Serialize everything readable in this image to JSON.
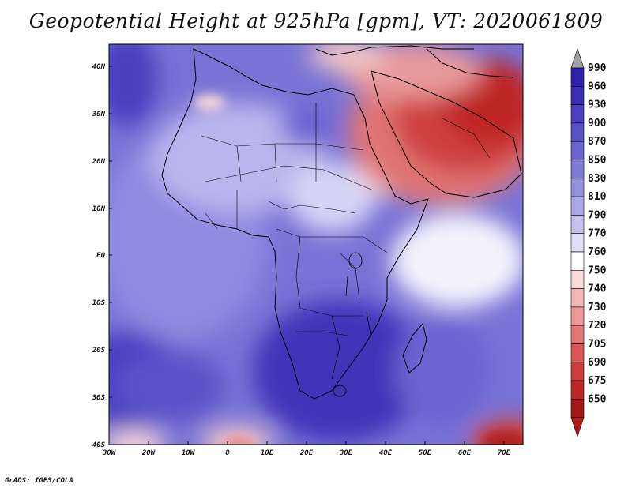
{
  "title": "Geopotential Height at 925hPa [gpm], VT: 2020061809",
  "credit": "GrADS: IGES/COLA",
  "map": {
    "lat_labels": [
      "40N",
      "30N",
      "20N",
      "10N",
      "EQ",
      "10S",
      "20S",
      "30S",
      "40S"
    ],
    "lat_values": [
      40,
      30,
      20,
      10,
      0,
      -10,
      -20,
      -30,
      -40
    ],
    "lon_labels": [
      "30W",
      "20W",
      "10W",
      "0",
      "10E",
      "20E",
      "30E",
      "40E",
      "50E",
      "60E",
      "70E"
    ],
    "lon_values": [
      -30,
      -20,
      -10,
      0,
      10,
      20,
      30,
      40,
      50,
      60,
      70
    ],
    "lat_range": [
      -40,
      44
    ],
    "lon_range": [
      -30,
      75
    ],
    "variable": "Geopotential Height",
    "level": "925hPa",
    "units": "gpm"
  },
  "colorbar": {
    "levels": [
      "990",
      "960",
      "930",
      "900",
      "870",
      "850",
      "830",
      "810",
      "790",
      "770",
      "760",
      "750",
      "740",
      "730",
      "720",
      "705",
      "690",
      "675",
      "650"
    ],
    "colors": [
      "#a3a3a3",
      "#2e21ab",
      "#3a2fb5",
      "#4a40c0",
      "#5a52c8",
      "#6b65d0",
      "#7f7ad8",
      "#9591e0",
      "#aca9e8",
      "#c5c3f0",
      "#e0dff8",
      "#ffffff",
      "#fbdada",
      "#f5b8b8",
      "#ee9898",
      "#e67878",
      "#dc5757",
      "#d03c3c",
      "#bf2727",
      "#a81818",
      "#b71c1c"
    ]
  },
  "colors": {
    "sea_blue": "#6f6ad3",
    "deep_blue": "#3a2fb5",
    "light_blue": "#c5c3f0",
    "red_high": "#c42525",
    "red_light": "#f3b9b9"
  }
}
